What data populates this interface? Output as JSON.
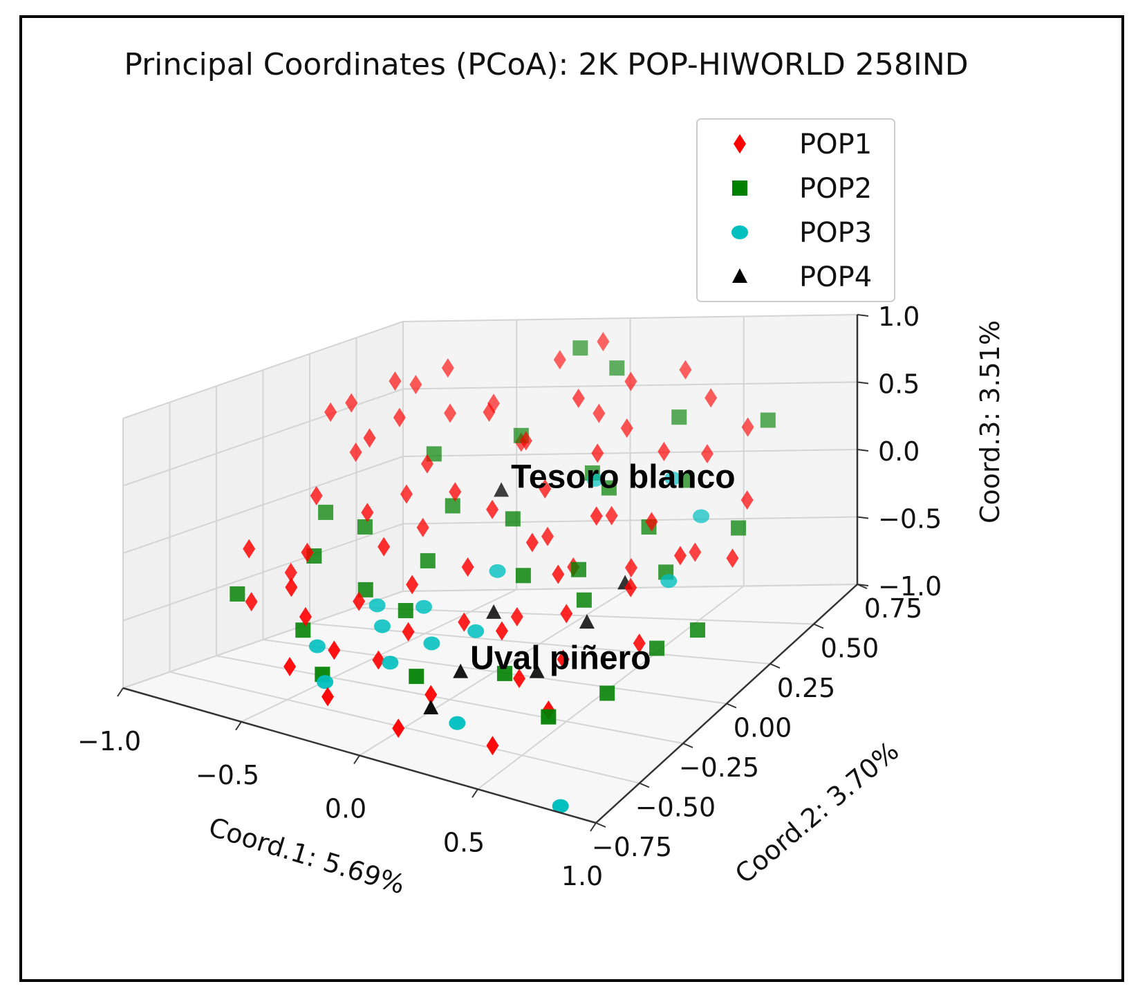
{
  "chart_data": {
    "type": "scatter",
    "projection": "3d",
    "title": "Principal Coordinates (PCoA): 2K POP-HIWORLD 258IND",
    "xlabel": "Coord.1: 5.69%",
    "ylabel": "Coord.2: 3.70%",
    "zlabel": "Coord.3: 3.51%",
    "xlim": [
      -1.0,
      1.0
    ],
    "ylim": [
      -0.75,
      0.75
    ],
    "zlim": [
      -1.0,
      1.0
    ],
    "xticks": [
      "−1.0",
      "−0.5",
      "0.0",
      "0.5",
      "1.0"
    ],
    "yticks": [
      "−0.75",
      "−0.50",
      "−0.25",
      "0.00",
      "0.25",
      "0.50",
      "0.75"
    ],
    "zticks": [
      "−1.0",
      "−0.5",
      "0.0",
      "0.5",
      "1.0"
    ],
    "grid": true,
    "legend_position": "top-right",
    "legend": [
      {
        "label": "POP1",
        "marker": "diamond",
        "color": "#ff0000"
      },
      {
        "label": "POP2",
        "marker": "square",
        "color": "#008000"
      },
      {
        "label": "POP3",
        "marker": "circle",
        "color": "#00bfbf"
      },
      {
        "label": "POP4",
        "marker": "triangle",
        "color": "#000000"
      }
    ],
    "annotations": [
      {
        "text": "Tesoro blanco",
        "series": "POP4",
        "point": [
          -0.05,
          0.1,
          0.25
        ]
      },
      {
        "text": "Uval piñero",
        "series": "POP4",
        "point": [
          0.2,
          -0.45,
          -0.55
        ]
      }
    ],
    "series": [
      {
        "name": "POP1",
        "marker": "diamond",
        "color": "#ff0000",
        "points": [
          [
            -0.95,
            0.3,
            0.55
          ],
          [
            -0.9,
            0.35,
            0.6
          ],
          [
            -0.85,
            0.1,
            0.05
          ],
          [
            -0.9,
            -0.2,
            -0.2
          ],
          [
            -0.85,
            -0.25,
            -0.55
          ],
          [
            -0.8,
            -0.1,
            -0.4
          ],
          [
            -0.75,
            0.4,
            0.75
          ],
          [
            -0.7,
            0.45,
            0.7
          ],
          [
            -0.7,
            0.2,
            0.45
          ],
          [
            -0.65,
            0.3,
            0.55
          ],
          [
            -0.6,
            0.5,
            0.8
          ],
          [
            -0.55,
            0.0,
            0.05
          ],
          [
            -0.6,
            -0.35,
            -0.3
          ],
          [
            -0.5,
            -0.4,
            -0.45
          ],
          [
            -0.45,
            0.2,
            0.3
          ],
          [
            -0.4,
            -0.1,
            -0.1
          ],
          [
            -0.35,
            -0.3,
            -0.35
          ],
          [
            -0.3,
            0.35,
            0.6
          ],
          [
            -0.25,
            0.1,
            0.2
          ],
          [
            -0.3,
            -0.5,
            -0.55
          ],
          [
            -0.2,
            -0.2,
            -0.25
          ],
          [
            -0.15,
            0.55,
            0.85
          ],
          [
            -0.1,
            0.3,
            0.45
          ],
          [
            -0.15,
            -0.45,
            -0.6
          ],
          [
            -0.05,
            0.05,
            0.15
          ],
          [
            0.0,
            -0.15,
            -0.1
          ],
          [
            0.0,
            0.6,
            0.95
          ],
          [
            0.05,
            0.4,
            0.7
          ],
          [
            0.1,
            -0.3,
            -0.35
          ],
          [
            0.1,
            0.15,
            0.25
          ],
          [
            0.15,
            -0.55,
            -0.65
          ],
          [
            0.2,
            0.5,
            0.75
          ],
          [
            0.2,
            -0.05,
            0.05
          ],
          [
            0.25,
            0.25,
            0.45
          ],
          [
            0.3,
            -0.35,
            -0.3
          ],
          [
            0.3,
            0.35,
            0.55
          ],
          [
            0.35,
            -0.1,
            -0.1
          ],
          [
            0.4,
            0.55,
            0.8
          ],
          [
            0.4,
            0.05,
            0.2
          ],
          [
            0.45,
            -0.45,
            -0.5
          ],
          [
            0.5,
            0.3,
            0.45
          ],
          [
            0.5,
            -0.25,
            -0.2
          ],
          [
            0.55,
            0.5,
            0.65
          ],
          [
            0.6,
            0.1,
            0.15
          ],
          [
            0.6,
            -0.4,
            -0.35
          ],
          [
            0.65,
            0.35,
            0.4
          ],
          [
            0.7,
            -0.15,
            -0.05
          ],
          [
            0.75,
            0.45,
            0.5
          ],
          [
            0.8,
            0.0,
            0.05
          ],
          [
            0.85,
            -0.3,
            -0.25
          ],
          [
            0.9,
            0.25,
            0.2
          ],
          [
            0.95,
            0.1,
            -0.05
          ],
          [
            -0.8,
            0.25,
            0.3
          ],
          [
            -0.65,
            -0.2,
            -0.15
          ],
          [
            -0.5,
            0.15,
            0.1
          ],
          [
            -0.45,
            -0.55,
            -0.7
          ],
          [
            -0.35,
            0.05,
            -0.05
          ],
          [
            -0.25,
            -0.6,
            -0.8
          ],
          [
            -0.2,
            0.4,
            0.35
          ],
          [
            -0.1,
            -0.35,
            -0.45
          ],
          [
            0.05,
            -0.6,
            -0.9
          ],
          [
            0.15,
            0.1,
            -0.05
          ],
          [
            0.25,
            -0.2,
            -0.35
          ],
          [
            0.35,
            0.2,
            0.05
          ],
          [
            0.45,
            -0.6,
            -0.85
          ],
          [
            0.55,
            0.05,
            -0.15
          ],
          [
            0.65,
            -0.55,
            -0.55
          ],
          [
            0.75,
            0.15,
            -0.1
          ],
          [
            -0.55,
            0.45,
            0.5
          ],
          [
            -0.4,
            0.5,
            0.55
          ],
          [
            0.1,
            0.45,
            0.55
          ],
          [
            0.3,
            0.05,
            -0.2
          ]
        ]
      },
      {
        "name": "POP2",
        "marker": "square",
        "color": "#008000",
        "points": [
          [
            -0.95,
            -0.2,
            -0.55
          ],
          [
            -0.85,
            0.15,
            -0.1
          ],
          [
            -0.7,
            -0.1,
            -0.25
          ],
          [
            -0.6,
            0.05,
            -0.1
          ],
          [
            -0.55,
            -0.35,
            -0.6
          ],
          [
            -0.5,
            0.3,
            0.3
          ],
          [
            -0.4,
            -0.2,
            -0.35
          ],
          [
            -0.35,
            -0.5,
            -0.75
          ],
          [
            -0.3,
            0.15,
            0.05
          ],
          [
            -0.2,
            0.4,
            0.4
          ],
          [
            -0.15,
            -0.3,
            -0.35
          ],
          [
            -0.1,
            0.6,
            0.9
          ],
          [
            0.0,
            0.1,
            0.05
          ],
          [
            0.05,
            -0.5,
            -0.6
          ],
          [
            0.1,
            0.55,
            0.8
          ],
          [
            0.2,
            -0.1,
            -0.15
          ],
          [
            0.3,
            0.25,
            0.2
          ],
          [
            0.35,
            -0.4,
            -0.55
          ],
          [
            0.45,
            0.45,
            0.55
          ],
          [
            0.5,
            -0.15,
            -0.2
          ],
          [
            0.6,
            0.3,
            0.25
          ],
          [
            0.65,
            -0.55,
            -0.6
          ],
          [
            0.7,
            0.05,
            -0.15
          ],
          [
            0.8,
            0.5,
            0.5
          ],
          [
            0.85,
            -0.2,
            -0.4
          ],
          [
            0.9,
            0.2,
            0.05
          ],
          [
            0.95,
            -0.1,
            -0.35
          ],
          [
            -0.25,
            -0.05,
            -0.2
          ],
          [
            0.15,
            0.35,
            0.2
          ],
          [
            0.4,
            -0.05,
            -0.1
          ],
          [
            0.55,
            0.15,
            0.05
          ],
          [
            0.75,
            -0.35,
            -0.6
          ]
        ]
      },
      {
        "name": "POP3",
        "marker": "circle",
        "color": "#00bfbf",
        "points": [
          [
            -0.45,
            -0.4,
            -0.65
          ],
          [
            -0.35,
            -0.2,
            -0.45
          ],
          [
            -0.3,
            -0.55,
            -0.75
          ],
          [
            -0.25,
            -0.3,
            -0.5
          ],
          [
            -0.15,
            -0.2,
            -0.4
          ],
          [
            -0.1,
            -0.45,
            -0.6
          ],
          [
            0.0,
            -0.35,
            -0.5
          ],
          [
            0.05,
            -0.05,
            -0.2
          ],
          [
            0.15,
            -0.3,
            -0.4
          ],
          [
            0.2,
            0.3,
            0.2
          ],
          [
            0.3,
            -0.6,
            -0.75
          ],
          [
            0.5,
            0.35,
            0.2
          ],
          [
            0.7,
            0.25,
            0.05
          ],
          [
            0.75,
            0.0,
            -0.15
          ],
          [
            0.85,
            -0.75,
            -0.95
          ]
        ]
      },
      {
        "name": "POP4",
        "marker": "triangle",
        "color": "#000000",
        "points": [
          [
            -0.05,
            0.1,
            0.25
          ],
          [
            0.15,
            -0.2,
            -0.35
          ],
          [
            0.2,
            -0.45,
            -0.55
          ],
          [
            0.45,
            -0.35,
            -0.55
          ],
          [
            0.55,
            -0.2,
            -0.3
          ],
          [
            0.6,
            -0.05,
            -0.15
          ],
          [
            0.15,
            -0.55,
            -0.75
          ]
        ]
      }
    ]
  }
}
